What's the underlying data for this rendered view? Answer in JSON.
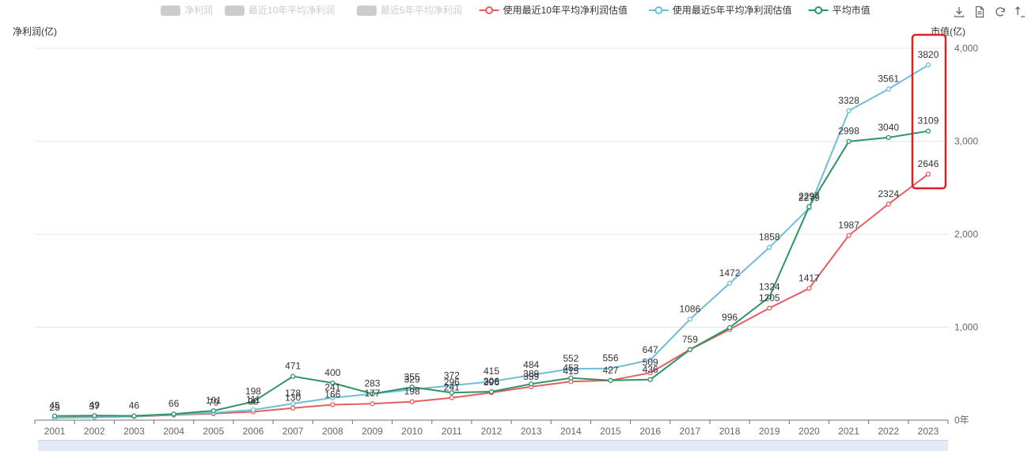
{
  "chart_data": {
    "type": "line",
    "categories": [
      "2001",
      "2002",
      "2003",
      "2004",
      "2005",
      "2006",
      "2007",
      "2008",
      "2009",
      "2010",
      "2011",
      "2012",
      "2013",
      "2014",
      "2015",
      "2016",
      "2017",
      "2018",
      "2019",
      "2020",
      "2021",
      "2022",
      "2023"
    ],
    "series": [
      {
        "name": "使用最近10年平均净利润估值",
        "color": "#e45f5f",
        "labelPos": "none",
        "values": [
          25,
          37,
          38,
          55,
          70,
          90,
          130,
          166,
          177,
          198,
          241,
          296,
          359,
          415,
          427,
          509,
          759,
          976,
          1205,
          1417,
          1987,
          2324,
          2646
        ],
        "labels": [
          null,
          null,
          null,
          null,
          null,
          null,
          null,
          null,
          null,
          null,
          null,
          null,
          null,
          null,
          null,
          null,
          null,
          null,
          "1205",
          "1417",
          "1987",
          "2324",
          "2646"
        ]
      },
      {
        "name": "使用最近5年平均净利润估值",
        "color": "#6fbed8",
        "labelPos": "top",
        "values": [
          25,
          30,
          40,
          60,
          79,
          111,
          178,
          241,
          283,
          329,
          372,
          415,
          484,
          552,
          556,
          647,
          1086,
          1472,
          1858,
          2279,
          3328,
          3561,
          3820
        ],
        "labels": [
          null,
          null,
          null,
          null,
          null,
          null,
          null,
          null,
          null,
          null,
          "372",
          "415",
          "484",
          "552",
          "556",
          "647",
          "1086",
          "1472",
          "1858",
          null,
          "3328",
          "3561",
          "3820"
        ]
      },
      {
        "name": "平均市值",
        "color": "#2e9463",
        "labelPos": "top",
        "values": [
          45,
          49,
          46,
          66,
          101,
          198,
          471,
          400,
          283,
          355,
          296,
          306,
          389,
          453,
          427,
          436,
          759,
          996,
          1324,
          2297,
          2998,
          3040,
          3109
        ],
        "labels": [
          "45",
          "49",
          "46",
          "66",
          "101",
          "198",
          "471",
          "400",
          "283",
          "355",
          "296",
          "306",
          "389",
          "453",
          null,
          "436",
          "759",
          "996",
          "1324",
          "2297",
          "2998",
          "3040",
          "3109"
        ]
      }
    ],
    "legend_inactive": [
      "净利润",
      "最近10年平均净利润",
      "最近5年平均净利润"
    ],
    "extra_labels": [
      {
        "x": "2001",
        "value": 25,
        "text": "25"
      },
      {
        "x": "2002",
        "value": 37,
        "text": "37"
      },
      {
        "x": "2005",
        "value": 79,
        "text": "79"
      },
      {
        "x": "2006",
        "value": 111,
        "text": "111"
      },
      {
        "x": "2006",
        "value": 90,
        "text": "90"
      },
      {
        "x": "2007",
        "value": 178,
        "text": "178"
      },
      {
        "x": "2007",
        "value": 130,
        "text": "130"
      },
      {
        "x": "2008",
        "value": 241,
        "text": "241"
      },
      {
        "x": "2008",
        "value": 166,
        "text": "166"
      },
      {
        "x": "2009",
        "value": 177,
        "text": "177"
      },
      {
        "x": "2010",
        "value": 329,
        "text": "329"
      },
      {
        "x": "2010",
        "value": 198,
        "text": "198"
      },
      {
        "x": "2011",
        "value": 241,
        "text": "241"
      },
      {
        "x": "2012",
        "value": 296,
        "text": "296"
      },
      {
        "x": "2013",
        "value": 359,
        "text": "359"
      },
      {
        "x": "2014",
        "value": 415,
        "text": "415"
      },
      {
        "x": "2015",
        "value": 427,
        "text": "427"
      },
      {
        "x": "2016",
        "value": 509,
        "text": "509"
      },
      {
        "x": "2020",
        "value": 2279,
        "text": "2279"
      }
    ],
    "ylabel": "净利润(亿)",
    "ylabel_right": "市值(亿)",
    "ylim": [
      0,
      4000
    ],
    "yticks": [
      0,
      1000,
      2000,
      3000,
      4000
    ],
    "ytick_labels": [
      "0年",
      "1,000",
      "2,000",
      "3,000",
      "4,000"
    ],
    "grid": true,
    "legend_position": "top",
    "highlight": {
      "x": "2023",
      "color": "#e02020"
    }
  }
}
